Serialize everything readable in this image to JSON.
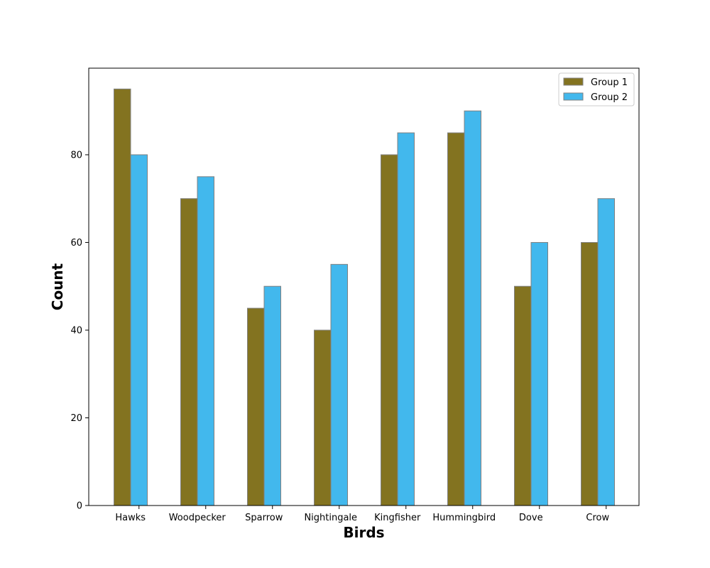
{
  "chart_data": {
    "type": "bar",
    "title": "",
    "xlabel": "Birds",
    "ylabel": "Count",
    "categories": [
      "Hawks",
      "Woodpecker",
      "Sparrow",
      "Nightingale",
      "Kingfisher",
      "Hummingbird",
      "Dove",
      "Crow"
    ],
    "series": [
      {
        "name": "Group 1",
        "color": "#837320",
        "values": [
          95,
          70,
          45,
          40,
          80,
          85,
          50,
          60
        ]
      },
      {
        "name": "Group 2",
        "color": "#42b8ed",
        "values": [
          80,
          75,
          50,
          55,
          85,
          90,
          60,
          70
        ]
      }
    ],
    "yticks": [
      0,
      20,
      40,
      60,
      80
    ],
    "ylim": [
      0,
      99.75
    ],
    "grid": false,
    "legend_position": "top-right",
    "bar_edge_color": "#808080"
  }
}
